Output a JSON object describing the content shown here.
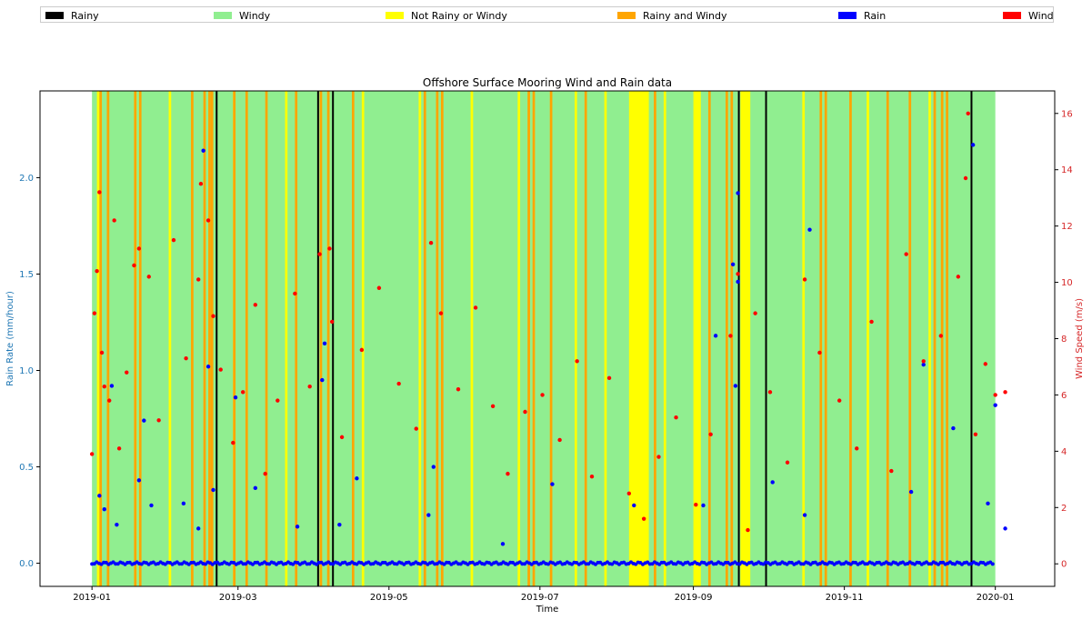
{
  "legend": [
    {
      "label": "Rainy",
      "color": "#000000"
    },
    {
      "label": "Windy",
      "color": "#90ee90"
    },
    {
      "label": "Not Rainy or Windy",
      "color": "#ffff00"
    },
    {
      "label": "Rainy and Windy",
      "color": "#ffa500"
    },
    {
      "label": "Rain",
      "color": "#0000ff"
    },
    {
      "label": "Wind",
      "color": "#ff0000"
    }
  ],
  "chart_data": {
    "type": "scatter",
    "title": "Offshore Surface Mooring Wind and Rain data",
    "xlabel": "Time",
    "ylabel_left": "Rain Rate (mm/hour)",
    "ylabel_right": "Wind Speed (m/s)",
    "left_axis_color": "#1f77b4",
    "right_axis_color": "#d62728",
    "x_ticks": [
      "2019-01",
      "2019-03",
      "2019-05",
      "2019-07",
      "2019-09",
      "2019-11",
      "2020-01"
    ],
    "xlim": [
      "2018-12-11",
      "2020-01-25"
    ],
    "ylim_left": [
      -0.12,
      2.45
    ],
    "ylim_right": [
      -0.8,
      16.8
    ],
    "y_ticks_left": [
      "0.0",
      "0.5",
      "1.0",
      "1.5",
      "2.0"
    ],
    "y_ticks_right": [
      "0",
      "2",
      "4",
      "6",
      "8",
      "10",
      "12",
      "14",
      "16"
    ],
    "background_range": [
      "2019-01-01",
      "2019-12-31"
    ],
    "background_category": "Windy",
    "category_bands": [
      {
        "category": "Rainy",
        "start": "2019-02-20",
        "end": "2019-02-20"
      },
      {
        "category": "Rainy",
        "start": "2019-04-02",
        "end": "2019-04-02"
      },
      {
        "category": "Rainy",
        "start": "2019-04-08",
        "end": "2019-04-08"
      },
      {
        "category": "Rainy",
        "start": "2019-09-19",
        "end": "2019-09-19"
      },
      {
        "category": "Rainy",
        "start": "2019-09-30",
        "end": "2019-09-30"
      },
      {
        "category": "Rainy",
        "start": "2019-12-22",
        "end": "2019-12-22"
      },
      {
        "category": "Not Rainy or Windy",
        "start": "2019-08-06",
        "end": "2019-08-13"
      },
      {
        "category": "Not Rainy or Windy",
        "start": "2019-09-01",
        "end": "2019-09-03"
      },
      {
        "category": "Not Rainy or Windy",
        "start": "2019-09-20",
        "end": "2019-09-23"
      },
      {
        "category": "Not Rainy or Windy",
        "start": "2019-01-03",
        "end": "2019-01-03"
      },
      {
        "category": "Not Rainy or Windy",
        "start": "2019-01-18",
        "end": "2019-01-18"
      },
      {
        "category": "Not Rainy or Windy",
        "start": "2019-02-01",
        "end": "2019-02-01"
      },
      {
        "category": "Not Rainy or Windy",
        "start": "2019-02-27",
        "end": "2019-02-27"
      },
      {
        "category": "Not Rainy or Windy",
        "start": "2019-03-20",
        "end": "2019-03-20"
      },
      {
        "category": "Not Rainy or Windy",
        "start": "2019-04-20",
        "end": "2019-04-20"
      },
      {
        "category": "Not Rainy or Windy",
        "start": "2019-05-13",
        "end": "2019-05-13"
      },
      {
        "category": "Not Rainy or Windy",
        "start": "2019-06-03",
        "end": "2019-06-03"
      },
      {
        "category": "Not Rainy or Windy",
        "start": "2019-06-22",
        "end": "2019-06-22"
      },
      {
        "category": "Not Rainy or Windy",
        "start": "2019-07-15",
        "end": "2019-07-15"
      },
      {
        "category": "Not Rainy or Windy",
        "start": "2019-07-27",
        "end": "2019-07-27"
      },
      {
        "category": "Not Rainy or Windy",
        "start": "2019-08-20",
        "end": "2019-08-20"
      },
      {
        "category": "Not Rainy or Windy",
        "start": "2019-10-15",
        "end": "2019-10-15"
      },
      {
        "category": "Not Rainy or Windy",
        "start": "2019-11-10",
        "end": "2019-11-10"
      },
      {
        "category": "Not Rainy or Windy",
        "start": "2019-12-05",
        "end": "2019-12-05"
      },
      {
        "category": "Rainy and Windy",
        "start": "2019-01-04",
        "end": "2019-01-04"
      },
      {
        "category": "Rainy and Windy",
        "start": "2019-01-07",
        "end": "2019-01-07"
      },
      {
        "category": "Rainy and Windy",
        "start": "2019-01-18",
        "end": "2019-01-18"
      },
      {
        "category": "Rainy and Windy",
        "start": "2019-01-20",
        "end": "2019-01-20"
      },
      {
        "category": "Rainy and Windy",
        "start": "2019-02-10",
        "end": "2019-02-10"
      },
      {
        "category": "Rainy and Windy",
        "start": "2019-02-15",
        "end": "2019-02-15"
      },
      {
        "category": "Rainy and Windy",
        "start": "2019-02-17",
        "end": "2019-02-17"
      },
      {
        "category": "Rainy and Windy",
        "start": "2019-02-18",
        "end": "2019-02-18"
      },
      {
        "category": "Rainy and Windy",
        "start": "2019-02-27",
        "end": "2019-02-27"
      },
      {
        "category": "Rainy and Windy",
        "start": "2019-03-04",
        "end": "2019-03-04"
      },
      {
        "category": "Rainy and Windy",
        "start": "2019-03-12",
        "end": "2019-03-12"
      },
      {
        "category": "Rainy and Windy",
        "start": "2019-03-24",
        "end": "2019-03-24"
      },
      {
        "category": "Rainy and Windy",
        "start": "2019-04-03",
        "end": "2019-04-03"
      },
      {
        "category": "Rainy and Windy",
        "start": "2019-04-06",
        "end": "2019-04-06"
      },
      {
        "category": "Rainy and Windy",
        "start": "2019-04-16",
        "end": "2019-04-16"
      },
      {
        "category": "Rainy and Windy",
        "start": "2019-05-15",
        "end": "2019-05-15"
      },
      {
        "category": "Rainy and Windy",
        "start": "2019-05-20",
        "end": "2019-05-20"
      },
      {
        "category": "Rainy and Windy",
        "start": "2019-05-22",
        "end": "2019-05-22"
      },
      {
        "category": "Rainy and Windy",
        "start": "2019-06-26",
        "end": "2019-06-26"
      },
      {
        "category": "Rainy and Windy",
        "start": "2019-06-28",
        "end": "2019-06-28"
      },
      {
        "category": "Rainy and Windy",
        "start": "2019-07-05",
        "end": "2019-07-05"
      },
      {
        "category": "Rainy and Windy",
        "start": "2019-07-19",
        "end": "2019-07-19"
      },
      {
        "category": "Rainy and Windy",
        "start": "2019-08-16",
        "end": "2019-08-16"
      },
      {
        "category": "Rainy and Windy",
        "start": "2019-09-07",
        "end": "2019-09-07"
      },
      {
        "category": "Rainy and Windy",
        "start": "2019-09-14",
        "end": "2019-09-14"
      },
      {
        "category": "Rainy and Windy",
        "start": "2019-09-16",
        "end": "2019-09-16"
      },
      {
        "category": "Rainy and Windy",
        "start": "2019-10-22",
        "end": "2019-10-22"
      },
      {
        "category": "Rainy and Windy",
        "start": "2019-10-24",
        "end": "2019-10-24"
      },
      {
        "category": "Rainy and Windy",
        "start": "2019-11-03",
        "end": "2019-11-03"
      },
      {
        "category": "Rainy and Windy",
        "start": "2019-11-18",
        "end": "2019-11-18"
      },
      {
        "category": "Rainy and Windy",
        "start": "2019-11-27",
        "end": "2019-11-27"
      },
      {
        "category": "Rainy and Windy",
        "start": "2019-12-07",
        "end": "2019-12-07"
      },
      {
        "category": "Rainy and Windy",
        "start": "2019-12-10",
        "end": "2019-12-10"
      },
      {
        "category": "Rainy and Windy",
        "start": "2019-12-12",
        "end": "2019-12-12"
      }
    ],
    "series": [
      {
        "name": "Rain",
        "axis": "left",
        "color": "#0000ff",
        "points": [
          [
            "2019-01-04",
            0.35
          ],
          [
            "2019-01-06",
            0.28
          ],
          [
            "2019-01-09",
            0.92
          ],
          [
            "2019-01-11",
            0.2
          ],
          [
            "2019-01-20",
            0.43
          ],
          [
            "2019-01-22",
            0.74
          ],
          [
            "2019-01-25",
            0.3
          ],
          [
            "2019-02-07",
            0.31
          ],
          [
            "2019-02-13",
            0.18
          ],
          [
            "2019-02-15",
            2.14
          ],
          [
            "2019-02-17",
            1.02
          ],
          [
            "2019-02-19",
            0.38
          ],
          [
            "2019-02-28",
            0.86
          ],
          [
            "2019-03-08",
            0.39
          ],
          [
            "2019-03-25",
            0.19
          ],
          [
            "2019-04-04",
            0.95
          ],
          [
            "2019-04-05",
            1.14
          ],
          [
            "2019-04-11",
            0.2
          ],
          [
            "2019-04-18",
            0.44
          ],
          [
            "2019-05-17",
            0.25
          ],
          [
            "2019-05-19",
            0.5
          ],
          [
            "2019-06-16",
            0.1
          ],
          [
            "2019-07-06",
            0.41
          ],
          [
            "2019-08-08",
            0.3
          ],
          [
            "2019-09-05",
            0.3
          ],
          [
            "2019-09-10",
            1.18
          ],
          [
            "2019-09-17",
            1.55
          ],
          [
            "2019-09-19",
            1.92
          ],
          [
            "2019-09-19",
            1.46
          ],
          [
            "2019-09-18",
            0.92
          ],
          [
            "2019-10-03",
            0.42
          ],
          [
            "2019-10-16",
            0.25
          ],
          [
            "2019-10-18",
            1.73
          ],
          [
            "2019-11-28",
            0.37
          ],
          [
            "2019-12-03",
            1.03
          ],
          [
            "2019-12-15",
            0.7
          ],
          [
            "2019-12-23",
            2.17
          ],
          [
            "2019-12-29",
            0.31
          ],
          [
            "2020-01-01",
            0.82
          ],
          [
            "2020-01-05",
            0.18
          ]
        ]
      },
      {
        "name": "Wind",
        "axis": "right",
        "color": "#ff0000",
        "points": [
          [
            "2019-01-01",
            3.9
          ],
          [
            "2019-01-02",
            8.9
          ],
          [
            "2019-01-03",
            10.4
          ],
          [
            "2019-01-04",
            13.2
          ],
          [
            "2019-01-05",
            7.5
          ],
          [
            "2019-01-06",
            6.3
          ],
          [
            "2019-01-08",
            5.8
          ],
          [
            "2019-01-10",
            12.2
          ],
          [
            "2019-01-12",
            4.1
          ],
          [
            "2019-01-15",
            6.8
          ],
          [
            "2019-01-18",
            10.6
          ],
          [
            "2019-01-20",
            11.2
          ],
          [
            "2019-01-24",
            10.2
          ],
          [
            "2019-01-28",
            5.1
          ],
          [
            "2019-02-03",
            11.5
          ],
          [
            "2019-02-08",
            7.3
          ],
          [
            "2019-02-13",
            10.1
          ],
          [
            "2019-02-14",
            13.5
          ],
          [
            "2019-02-17",
            12.2
          ],
          [
            "2019-02-19",
            8.8
          ],
          [
            "2019-02-22",
            6.9
          ],
          [
            "2019-02-27",
            4.3
          ],
          [
            "2019-03-03",
            6.1
          ],
          [
            "2019-03-08",
            9.2
          ],
          [
            "2019-03-12",
            3.2
          ],
          [
            "2019-03-17",
            5.8
          ],
          [
            "2019-03-24",
            9.6
          ],
          [
            "2019-03-30",
            6.3
          ],
          [
            "2019-04-03",
            11.0
          ],
          [
            "2019-04-07",
            11.2
          ],
          [
            "2019-04-08",
            8.6
          ],
          [
            "2019-04-12",
            4.5
          ],
          [
            "2019-04-20",
            7.6
          ],
          [
            "2019-04-27",
            9.8
          ],
          [
            "2019-05-05",
            6.4
          ],
          [
            "2019-05-12",
            4.8
          ],
          [
            "2019-05-18",
            11.4
          ],
          [
            "2019-05-22",
            8.9
          ],
          [
            "2019-05-29",
            6.2
          ],
          [
            "2019-06-05",
            9.1
          ],
          [
            "2019-06-12",
            5.6
          ],
          [
            "2019-06-18",
            3.2
          ],
          [
            "2019-06-25",
            5.4
          ],
          [
            "2019-07-02",
            6.0
          ],
          [
            "2019-07-09",
            4.4
          ],
          [
            "2019-07-16",
            7.2
          ],
          [
            "2019-07-22",
            3.1
          ],
          [
            "2019-07-29",
            6.6
          ],
          [
            "2019-08-06",
            2.5
          ],
          [
            "2019-08-12",
            1.6
          ],
          [
            "2019-08-18",
            3.8
          ],
          [
            "2019-08-25",
            5.2
          ],
          [
            "2019-09-02",
            2.1
          ],
          [
            "2019-09-08",
            4.6
          ],
          [
            "2019-09-16",
            8.1
          ],
          [
            "2019-09-19",
            10.3
          ],
          [
            "2019-09-23",
            1.2
          ],
          [
            "2019-09-26",
            8.9
          ],
          [
            "2019-10-02",
            6.1
          ],
          [
            "2019-10-09",
            3.6
          ],
          [
            "2019-10-16",
            10.1
          ],
          [
            "2019-10-22",
            7.5
          ],
          [
            "2019-10-30",
            5.8
          ],
          [
            "2019-11-06",
            4.1
          ],
          [
            "2019-11-12",
            8.6
          ],
          [
            "2019-11-20",
            3.3
          ],
          [
            "2019-11-26",
            11.0
          ],
          [
            "2019-12-03",
            7.2
          ],
          [
            "2019-12-10",
            8.1
          ],
          [
            "2019-12-17",
            10.2
          ],
          [
            "2019-12-20",
            13.7
          ],
          [
            "2019-12-21",
            16.0
          ],
          [
            "2019-12-24",
            4.6
          ],
          [
            "2019-12-28",
            7.1
          ],
          [
            "2020-01-01",
            6.0
          ],
          [
            "2020-01-05",
            6.1
          ]
        ]
      }
    ]
  }
}
